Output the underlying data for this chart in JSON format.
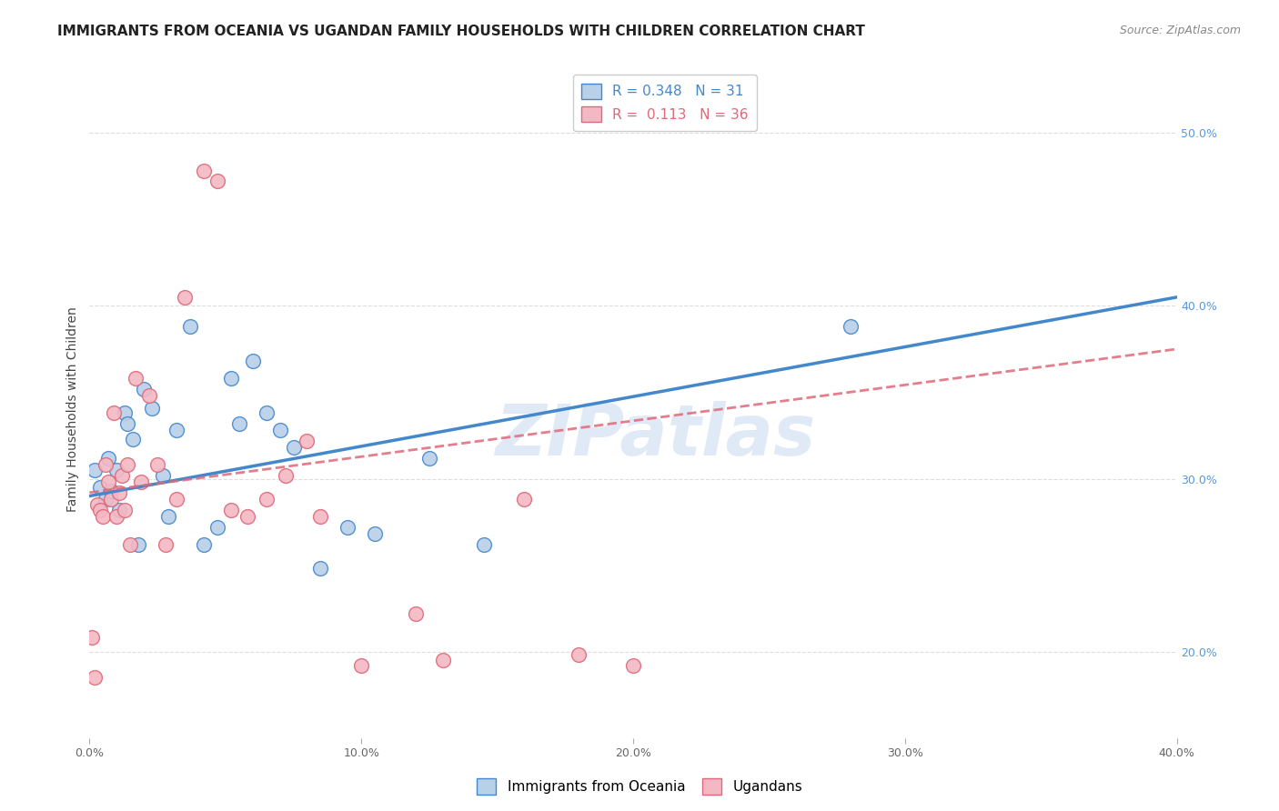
{
  "title": "IMMIGRANTS FROM OCEANIA VS UGANDAN FAMILY HOUSEHOLDS WITH CHILDREN CORRELATION CHART",
  "source": "Source: ZipAtlas.com",
  "ylabel": "Family Households with Children",
  "legend_blue_R": "0.348",
  "legend_blue_N": "31",
  "legend_pink_R": "0.113",
  "legend_pink_N": "36",
  "legend_label_blue": "Immigrants from Oceania",
  "legend_label_pink": "Ugandans",
  "watermark": "ZIPatlas",
  "blue_scatter": [
    [
      0.2,
      30.5
    ],
    [
      0.4,
      29.5
    ],
    [
      0.6,
      28.8
    ],
    [
      0.7,
      31.2
    ],
    [
      0.8,
      29.3
    ],
    [
      1.0,
      30.5
    ],
    [
      1.1,
      28.2
    ],
    [
      1.3,
      33.8
    ],
    [
      1.4,
      33.2
    ],
    [
      1.6,
      32.3
    ],
    [
      1.8,
      26.2
    ],
    [
      2.0,
      35.2
    ],
    [
      2.3,
      34.1
    ],
    [
      2.7,
      30.2
    ],
    [
      2.9,
      27.8
    ],
    [
      3.2,
      32.8
    ],
    [
      3.7,
      38.8
    ],
    [
      4.2,
      26.2
    ],
    [
      4.7,
      27.2
    ],
    [
      5.2,
      35.8
    ],
    [
      5.5,
      33.2
    ],
    [
      6.0,
      36.8
    ],
    [
      6.5,
      33.8
    ],
    [
      7.0,
      32.8
    ],
    [
      7.5,
      31.8
    ],
    [
      8.5,
      24.8
    ],
    [
      9.5,
      27.2
    ],
    [
      10.5,
      26.8
    ],
    [
      12.5,
      31.2
    ],
    [
      14.5,
      26.2
    ],
    [
      28.0,
      38.8
    ]
  ],
  "pink_scatter": [
    [
      0.1,
      20.8
    ],
    [
      0.2,
      18.5
    ],
    [
      0.3,
      28.5
    ],
    [
      0.4,
      28.2
    ],
    [
      0.5,
      27.8
    ],
    [
      0.6,
      30.8
    ],
    [
      0.7,
      29.8
    ],
    [
      0.8,
      28.8
    ],
    [
      0.9,
      33.8
    ],
    [
      1.0,
      27.8
    ],
    [
      1.1,
      29.2
    ],
    [
      1.2,
      30.2
    ],
    [
      1.3,
      28.2
    ],
    [
      1.4,
      30.8
    ],
    [
      1.5,
      26.2
    ],
    [
      1.7,
      35.8
    ],
    [
      1.9,
      29.8
    ],
    [
      2.2,
      34.8
    ],
    [
      2.5,
      30.8
    ],
    [
      2.8,
      26.2
    ],
    [
      3.2,
      28.8
    ],
    [
      3.5,
      40.5
    ],
    [
      4.2,
      47.8
    ],
    [
      4.7,
      47.2
    ],
    [
      5.2,
      28.2
    ],
    [
      5.8,
      27.8
    ],
    [
      6.5,
      28.8
    ],
    [
      7.2,
      30.2
    ],
    [
      8.0,
      32.2
    ],
    [
      8.5,
      27.8
    ],
    [
      10.0,
      19.2
    ],
    [
      12.0,
      22.2
    ],
    [
      13.0,
      19.5
    ],
    [
      16.0,
      28.8
    ],
    [
      18.0,
      19.8
    ],
    [
      20.0,
      19.2
    ]
  ],
  "blue_color": "#b8d0e8",
  "pink_color": "#f4b8c4",
  "blue_line_color": "#4488cc",
  "pink_line_color": "#e06878",
  "title_fontsize": 11,
  "axis_label_fontsize": 10,
  "tick_fontsize": 9,
  "legend_fontsize": 11,
  "source_fontsize": 9,
  "background_color": "#ffffff",
  "grid_color": "#dddddd",
  "xlim": [
    0,
    40
  ],
  "ylim": [
    15,
    53
  ],
  "y_ticks": [
    20,
    30,
    40,
    50
  ],
  "x_ticks": [
    0,
    10,
    20,
    30,
    40
  ]
}
